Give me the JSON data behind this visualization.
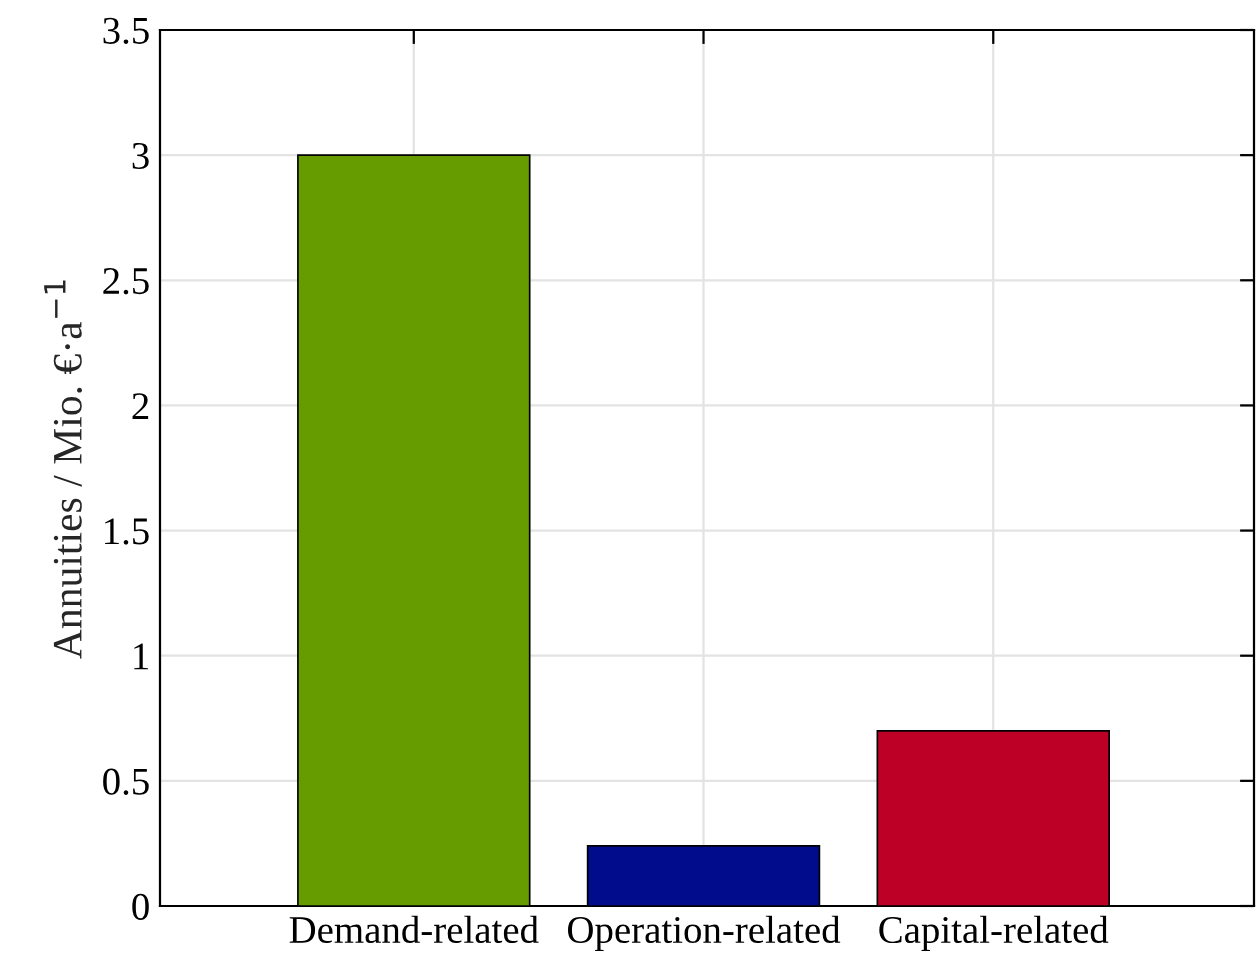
{
  "chart_data": {
    "type": "bar",
    "categories": [
      "Demand-related",
      "Operation-related",
      "Capital-related"
    ],
    "values": [
      3.0,
      0.24,
      0.7
    ],
    "colors": [
      "#669c00",
      "#000c8c",
      "#bd0026"
    ],
    "ylabel": "Annuities / Mio. €·a$^{−1}$",
    "ylim": [
      0,
      3.5
    ],
    "yticks": [
      0,
      0.5,
      1,
      1.5,
      2,
      2.5,
      3,
      3.5
    ],
    "grid": true,
    "legend": false
  }
}
